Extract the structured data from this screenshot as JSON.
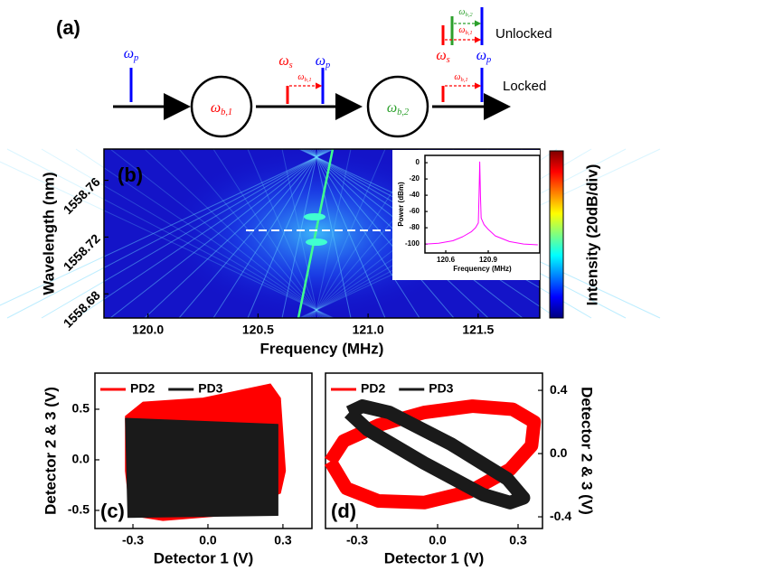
{
  "diagram": {
    "label": "(a)",
    "states": [
      "Unlocked",
      "Locked"
    ],
    "symbols": [
      {
        "symbol": "ω",
        "sub": "p",
        "color": "#0000ff"
      },
      {
        "symbol": "ω",
        "sub": "b,1",
        "color": "#ff0000"
      },
      {
        "symbol": "ω",
        "sub": "s",
        "color": "#ff0000"
      },
      {
        "symbol": "ω",
        "sub": "p",
        "color": "#0000ff"
      },
      {
        "symbol": "ω",
        "sub": "b,1",
        "color": "#ff0000"
      },
      {
        "symbol": "ω",
        "sub": "b,2",
        "color": "#2ca02c"
      },
      {
        "symbol": "ω",
        "sub": "b,2",
        "color": "#2ca02c"
      },
      {
        "symbol": "ω",
        "sub": "b,1",
        "color": "#ff0000"
      },
      {
        "symbol": "ω",
        "sub": "s",
        "color": "#ff0000"
      },
      {
        "symbol": "ω",
        "sub": "p",
        "color": "#0000ff"
      },
      {
        "symbol": "ω",
        "sub": "b,1",
        "color": "#ff0000"
      }
    ]
  },
  "chart_data": [
    {
      "type": "heatmap",
      "label": "(b)",
      "xlabel": "Frequency (MHz)",
      "ylabel": "Wavelength (nm)",
      "colorbar_label": "Intensity (20dB/div)",
      "xlim": [
        119.8,
        121.78
      ],
      "xticks": [
        {
          "value": 120,
          "label": "120.0"
        },
        120.5,
        {
          "value": 121,
          "label": "121.0"
        },
        121.5
      ],
      "ylim": [
        1558.663,
        1558.782
      ],
      "yticks": [
        1558.68,
        1558.72,
        1558.76
      ],
      "inset": {
        "type": "line",
        "xlabel": "Frequency (MHz)",
        "ylabel": "Power (dBm)",
        "xlim": [
          120.453,
          121.264
        ],
        "xticks": [
          120.6,
          120.9
        ],
        "ylim": [
          -111,
          9
        ],
        "yticks": [
          0,
          -20,
          -40,
          -60,
          -80,
          -100
        ],
        "series": [
          {
            "color": "#ff00ff",
            "x": [
              120.46,
              120.55,
              120.65,
              120.72,
              120.78,
              120.81,
              120.83,
              120.835,
              120.84,
              120.845,
              120.85,
              120.87,
              120.9,
              120.95,
              121.05,
              121.15,
              121.25
            ],
            "values": [
              -100,
              -99,
              -96,
              -91,
              -85,
              -80,
              -74,
              -40,
              1,
              -40,
              -68,
              -76,
              -82,
              -90,
              -97,
              -100,
              -101
            ]
          }
        ]
      }
    },
    {
      "type": "line",
      "filled": true,
      "label": "(c)",
      "xlabel": "Detector 1 (V)",
      "ylabel": "Detector 2 & 3 (V)",
      "y_axis_side": "left",
      "legend": "upper left",
      "xlim": [
        -0.452,
        0.416
      ],
      "xticks": [
        -0.3,
        {
          "value": 0,
          "label": "0.0"
        },
        0.3
      ],
      "ylim": [
        -0.679,
        0.857
      ],
      "yticks": [
        -0.5,
        {
          "value": 0,
          "label": "0.0"
        },
        0.5
      ],
      "series": [
        {
          "name": "PD2",
          "color": "#ff0000",
          "x": [
            -0.33,
            -0.26,
            -0.02,
            0.25,
            0.29,
            0.31,
            0.29,
            0.07,
            -0.18,
            -0.31,
            -0.33
          ],
          "values": [
            0.43,
            0.57,
            0.61,
            0.75,
            0.61,
            -0.11,
            -0.33,
            -0.55,
            -0.6,
            -0.55,
            -0.11
          ]
        },
        {
          "name": "PD3",
          "color": "#1a1a1a",
          "x": [
            -0.33,
            0.28,
            0.28,
            -0.32
          ],
          "values": [
            0.41,
            0.35,
            -0.55,
            -0.57
          ]
        }
      ]
    },
    {
      "type": "line",
      "filled": false,
      "label": "(d)",
      "xlabel": "Detector 1 (V)",
      "ylabel": "Detector 2 & 3 (V)",
      "y_axis_side": "right",
      "legend": "upper left",
      "xlim": [
        -0.418,
        0.391
      ],
      "xticks": [
        -0.3,
        {
          "value": 0,
          "label": "0.0"
        },
        0.3
      ],
      "ylim": [
        -0.474,
        0.509
      ],
      "yticks": [
        -0.4,
        {
          "value": 0,
          "label": "0.0"
        },
        0.4
      ],
      "series": [
        {
          "name": "PD2",
          "color": "#ff0000",
          "x": [
            -0.4,
            -0.35,
            -0.22,
            -0.05,
            0.13,
            0.28,
            0.36,
            0.35,
            0.27,
            0.12,
            -0.05,
            -0.22,
            -0.34,
            -0.4
          ],
          "values": [
            -0.05,
            0.08,
            0.18,
            0.26,
            0.3,
            0.28,
            0.2,
            0.05,
            -0.1,
            -0.24,
            -0.31,
            -0.3,
            -0.22,
            -0.05
          ]
        },
        {
          "name": "PD3",
          "color": "#1a1a1a",
          "x": [
            -0.33,
            -0.28,
            -0.18,
            0.05,
            0.26,
            0.32,
            0.27,
            0.17,
            -0.05,
            -0.26,
            -0.33
          ],
          "values": [
            0.26,
            0.3,
            0.26,
            0.06,
            -0.16,
            -0.28,
            -0.31,
            -0.26,
            -0.06,
            0.15,
            0.26
          ]
        }
      ]
    }
  ]
}
